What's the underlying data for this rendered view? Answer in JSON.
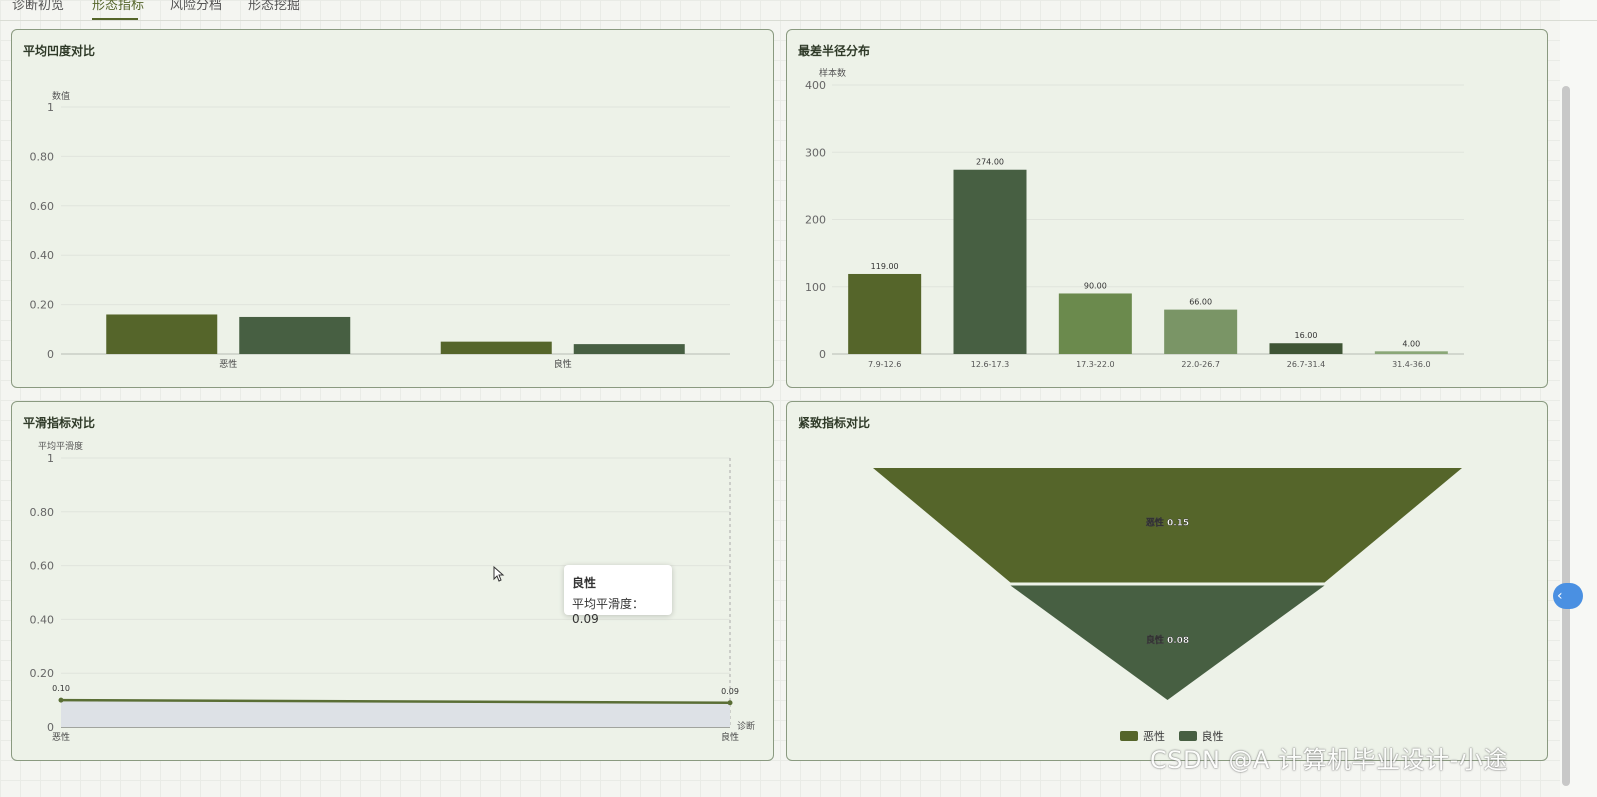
{
  "tabs": [
    {
      "label": "诊断初览"
    },
    {
      "label": "形态指标"
    },
    {
      "label": "风险分档"
    },
    {
      "label": "形态挖掘"
    }
  ],
  "colors": {
    "malignant": "#55652a",
    "benign": "#475f42",
    "dist": [
      "#55652a",
      "#475f42",
      "#6b8a4d",
      "#7a9566",
      "#3f5535",
      "#8aa777"
    ],
    "line": "#5a6e35",
    "area": "#dde1e6"
  },
  "panels": {
    "concavity": {
      "title": "平均凹度对比"
    },
    "radius": {
      "title": "最差半径分布"
    },
    "smoothness": {
      "title": "平滑指标对比"
    },
    "compactness": {
      "title": "紧致指标对比"
    }
  },
  "chart_data": [
    {
      "type": "bar",
      "title": "平均凹度对比",
      "ylabel": "数值",
      "categories": [
        "恶性",
        "良性"
      ],
      "series": [
        {
          "values": [
            0.16,
            0.05
          ]
        },
        {
          "values": [
            0.15,
            0.04
          ]
        }
      ],
      "ylim": [
        0,
        1
      ],
      "yticks": [
        "0",
        "0.20",
        "0.40",
        "0.60",
        "0.80",
        "1"
      ],
      "grid": true
    },
    {
      "type": "bar",
      "title": "最差半径分布",
      "ylabel": "样本数",
      "categories": [
        "7.9-12.6",
        "12.6-17.3",
        "17.3-22.0",
        "22.0-26.7",
        "26.7-31.4",
        "31.4-36.0"
      ],
      "values": [
        119,
        274,
        90,
        66,
        16,
        4
      ],
      "data_labels": [
        "119.00",
        "274.00",
        "90.00",
        "66.00",
        "16.00",
        "4.00"
      ],
      "ylim": [
        0,
        400
      ],
      "yticks": [
        "0",
        "100",
        "200",
        "300",
        "400"
      ],
      "grid": true
    },
    {
      "type": "area",
      "title": "平滑指标对比",
      "ylabel": "平均平滑度",
      "xlabel": "诊断",
      "categories": [
        "恶性",
        "良性"
      ],
      "values": [
        0.1,
        0.09
      ],
      "data_labels": [
        "0.10",
        "0.09"
      ],
      "ylim": [
        0,
        1
      ],
      "yticks": [
        "0",
        "0.20",
        "0.40",
        "0.60",
        "0.80",
        "1"
      ],
      "grid": true,
      "tooltip": {
        "title": "良性",
        "label": "平均平滑度：",
        "value": "0.09"
      }
    },
    {
      "type": "funnel",
      "title": "紧致指标对比",
      "categories": [
        "恶性",
        "良性"
      ],
      "values": [
        0.15,
        0.08
      ],
      "data_labels": [
        "恶性 0.15",
        "良性 0.08"
      ],
      "legend": [
        "恶性",
        "良性"
      ],
      "legend_position": "bottom"
    }
  ],
  "watermark": "CSDN @A 计算机毕业设计-小途"
}
